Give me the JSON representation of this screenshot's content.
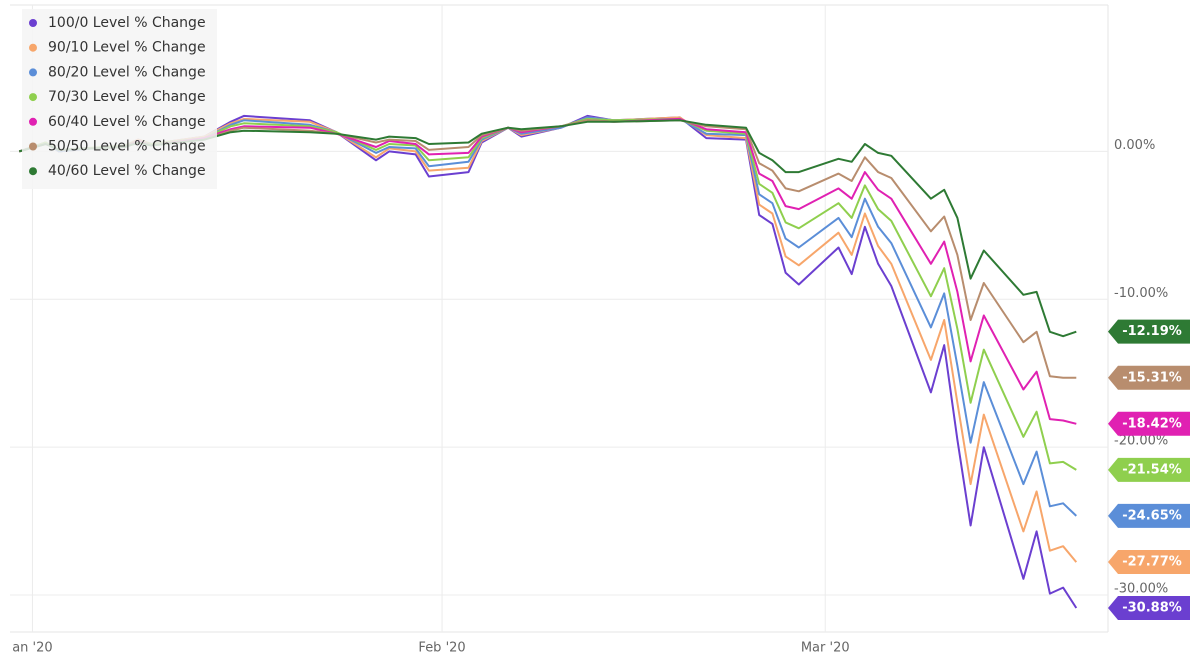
{
  "chart_data": {
    "type": "line",
    "x": [
      -1,
      1,
      2,
      7,
      8,
      9,
      13,
      15,
      16,
      21,
      23,
      26,
      27,
      29,
      30,
      33,
      34,
      36,
      37,
      40,
      42,
      44,
      49,
      51,
      54,
      55,
      56,
      57,
      58,
      61,
      62,
      63,
      64,
      65,
      68,
      69,
      70,
      71,
      72,
      75,
      76,
      77,
      78,
      79
    ],
    "xlim": [
      -1.7,
      81.4
    ],
    "xticks": [
      {
        "value": 0,
        "label": "an '20"
      },
      {
        "value": 31,
        "label": "Feb '20"
      },
      {
        "value": 60,
        "label": "Mar '20"
      }
    ],
    "ylim": [
      -32.5,
      9.9
    ],
    "yticks": [
      {
        "value": 0,
        "label": "0.00%"
      },
      {
        "value": -10,
        "label": "-10.00%"
      },
      {
        "value": -20,
        "label": "-20.00%"
      },
      {
        "value": -30,
        "label": "-30.00%"
      }
    ],
    "grid": true,
    "legend": "top-left",
    "series": [
      {
        "name": "100/0 Level % Change",
        "color": "#6b3fd0",
        "end_label": "-30.88%",
        "values": [
          0,
          0.6,
          0.0,
          0.4,
          0.8,
          0.5,
          1.0,
          2.0,
          2.4,
          2.1,
          1.3,
          -0.6,
          0.0,
          -0.2,
          -1.7,
          -1.4,
          0.6,
          1.6,
          1.0,
          1.6,
          2.4,
          2.1,
          2.3,
          0.9,
          0.8,
          -4.3,
          -4.9,
          -8.2,
          -9.0,
          -6.5,
          -8.3,
          -5.1,
          -7.6,
          -9.1,
          -16.3,
          -13.1,
          -19.5,
          -25.3,
          -20.0,
          -28.9,
          -25.7,
          -29.9,
          -29.5,
          -30.88
        ]
      },
      {
        "name": "90/10 Level % Change",
        "color": "#f7a66b",
        "end_label": "-27.77%",
        "values": [
          0,
          0.6,
          0.0,
          0.4,
          0.8,
          0.5,
          1.0,
          1.9,
          2.2,
          2.0,
          1.3,
          -0.4,
          0.2,
          0.0,
          -1.3,
          -1.1,
          0.7,
          1.6,
          1.1,
          1.6,
          2.3,
          2.1,
          2.3,
          1.1,
          0.9,
          -3.6,
          -4.2,
          -7.1,
          -7.7,
          -5.5,
          -7.0,
          -4.2,
          -6.4,
          -7.6,
          -14.1,
          -11.4,
          -17.0,
          -22.5,
          -17.8,
          -25.7,
          -23.0,
          -27.0,
          -26.7,
          -27.77
        ]
      },
      {
        "name": "80/20 Level % Change",
        "color": "#5b8ed8",
        "end_label": "-24.65%",
        "values": [
          0,
          0.6,
          0.0,
          0.4,
          0.7,
          0.5,
          0.9,
          1.8,
          2.1,
          1.8,
          1.3,
          -0.1,
          0.3,
          0.2,
          -1.0,
          -0.7,
          0.8,
          1.6,
          1.2,
          1.6,
          2.3,
          2.1,
          2.2,
          1.2,
          1.1,
          -2.9,
          -3.5,
          -5.9,
          -6.5,
          -4.5,
          -5.8,
          -3.2,
          -5.1,
          -6.2,
          -11.9,
          -9.6,
          -14.5,
          -19.7,
          -15.6,
          -22.5,
          -20.3,
          -24.0,
          -23.8,
          -24.65
        ]
      },
      {
        "name": "70/30 Level % Change",
        "color": "#8fcf4e",
        "end_label": "-21.54%",
        "values": [
          0,
          0.6,
          0.1,
          0.4,
          0.7,
          0.5,
          0.9,
          1.7,
          1.9,
          1.7,
          1.3,
          0.1,
          0.5,
          0.4,
          -0.6,
          -0.4,
          0.9,
          1.6,
          1.3,
          1.7,
          2.2,
          2.1,
          2.2,
          1.4,
          1.2,
          -2.2,
          -2.8,
          -4.8,
          -5.2,
          -3.5,
          -4.5,
          -2.3,
          -3.9,
          -4.7,
          -9.8,
          -7.9,
          -12.0,
          -17.0,
          -13.4,
          -19.3,
          -17.6,
          -21.1,
          -21.0,
          -21.54
        ]
      },
      {
        "name": "60/40 Level % Change",
        "color": "#e021b2",
        "end_label": "-18.42%",
        "values": [
          0,
          0.5,
          0.1,
          0.3,
          0.7,
          0.4,
          0.9,
          1.5,
          1.7,
          1.6,
          1.2,
          0.3,
          0.7,
          0.5,
          -0.2,
          -0.1,
          1.0,
          1.6,
          1.3,
          1.7,
          2.1,
          2.0,
          2.2,
          1.5,
          1.3,
          -1.5,
          -2.0,
          -3.7,
          -3.9,
          -2.5,
          -3.2,
          -1.4,
          -2.6,
          -3.2,
          -7.6,
          -6.1,
          -9.5,
          -14.2,
          -11.1,
          -16.1,
          -14.9,
          -18.1,
          -18.2,
          -18.42
        ]
      },
      {
        "name": "50/50 Level % Change",
        "color": "#b88d6e",
        "end_label": "-15.31%",
        "values": [
          0,
          0.5,
          0.1,
          0.3,
          0.6,
          0.4,
          0.8,
          1.4,
          1.6,
          1.4,
          1.2,
          0.6,
          0.8,
          0.7,
          0.1,
          0.3,
          1.1,
          1.6,
          1.4,
          1.7,
          2.1,
          2.0,
          2.1,
          1.7,
          1.5,
          -0.8,
          -1.3,
          -2.5,
          -2.7,
          -1.5,
          -2.0,
          -0.4,
          -1.4,
          -1.8,
          -5.4,
          -4.4,
          -7.0,
          -11.4,
          -8.9,
          -12.9,
          -12.2,
          -15.2,
          -15.3,
          -15.31
        ]
      },
      {
        "name": "40/60 Level % Change",
        "color": "#2e7a34",
        "end_label": "-12.19%",
        "values": [
          0,
          0.5,
          0.1,
          0.3,
          0.6,
          0.4,
          0.8,
          1.3,
          1.4,
          1.3,
          1.2,
          0.8,
          1.0,
          0.9,
          0.5,
          0.6,
          1.2,
          1.6,
          1.5,
          1.7,
          2.0,
          2.0,
          2.1,
          1.8,
          1.6,
          -0.1,
          -0.6,
          -1.4,
          -1.4,
          -0.5,
          -0.7,
          0.5,
          -0.1,
          -0.3,
          -3.2,
          -2.6,
          -4.5,
          -8.6,
          -6.7,
          -9.7,
          -9.5,
          -12.2,
          -12.5,
          -12.19
        ]
      }
    ]
  }
}
